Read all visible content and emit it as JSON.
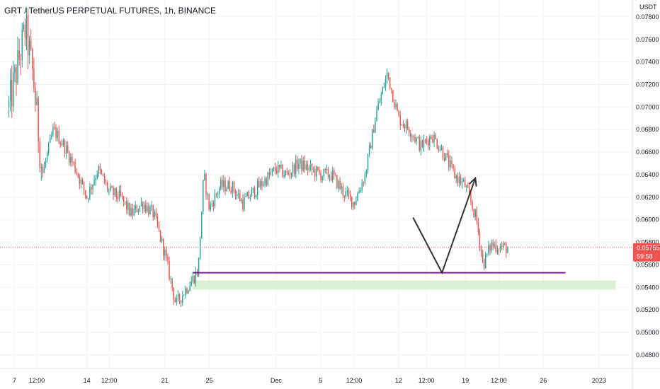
{
  "header": {
    "title": "GRT / TetherUS PERPETUAL FUTURES, 1h, BINANCE",
    "currency": "USDT"
  },
  "price_tag": {
    "price": "0.05755",
    "countdown": "59:58"
  },
  "colors": {
    "up": "#26a69a",
    "down": "#ef5350",
    "support_line": "#7b1fa2",
    "zone_fill": "#d9f0d3",
    "arrow": "#333333",
    "last_line": "#ef5350",
    "tag_bg": "#ef5350"
  },
  "chart_data": {
    "type": "candlestick",
    "title": "GRT / TetherUS PERPETUAL FUTURES, 1h, BINANCE",
    "y_axis": {
      "position": "right",
      "unit_label": "USDT",
      "ticks": [
        "0.07800",
        "0.07600",
        "0.07400",
        "0.07200",
        "0.07000",
        "0.06800",
        "0.06600",
        "0.06400",
        "0.06200",
        "0.06000",
        "0.05800",
        "0.05600",
        "0.05400",
        "0.05200",
        "0.05000",
        "0.04800"
      ],
      "tick_values": [
        0.078,
        0.076,
        0.074,
        0.072,
        0.07,
        0.068,
        0.066,
        0.064,
        0.062,
        0.06,
        0.058,
        0.056,
        0.054,
        0.052,
        0.05,
        0.048
      ],
      "range": [
        0.0468,
        0.0795
      ]
    },
    "x_axis": {
      "ticks": [
        "7",
        "12:00",
        "14",
        "12:00",
        "21",
        "25",
        "Dec",
        "5",
        "12:00",
        "12",
        "12:00",
        "19",
        "12:00",
        "26",
        "2023"
      ],
      "tick_positions": [
        0.5,
        2.5,
        7,
        9,
        14,
        18,
        24,
        28,
        31,
        35,
        37.5,
        41,
        44,
        48,
        53
      ]
    },
    "grid": true,
    "price_path": [
      [
        0,
        0.07
      ],
      [
        1.5,
        0.077
      ],
      [
        2.2,
        0.0725
      ],
      [
        3,
        0.064
      ],
      [
        4,
        0.068
      ],
      [
        5,
        0.0665
      ],
      [
        6,
        0.0645
      ],
      [
        7,
        0.062
      ],
      [
        8,
        0.0645
      ],
      [
        9,
        0.0625
      ],
      [
        10,
        0.062
      ],
      [
        11,
        0.0605
      ],
      [
        12,
        0.0615
      ],
      [
        13,
        0.0605
      ],
      [
        14,
        0.057
      ],
      [
        15,
        0.0525
      ],
      [
        16,
        0.054
      ],
      [
        17,
        0.0555
      ],
      [
        17.5,
        0.064
      ],
      [
        18,
        0.061
      ],
      [
        19,
        0.063
      ],
      [
        20,
        0.063
      ],
      [
        21,
        0.0615
      ],
      [
        22,
        0.0625
      ],
      [
        23,
        0.0635
      ],
      [
        24,
        0.0645
      ],
      [
        25,
        0.064
      ],
      [
        26,
        0.065
      ],
      [
        27,
        0.0645
      ],
      [
        28,
        0.064
      ],
      [
        29,
        0.064
      ],
      [
        30,
        0.0625
      ],
      [
        31,
        0.0615
      ],
      [
        32,
        0.064
      ],
      [
        33,
        0.0695
      ],
      [
        34,
        0.073
      ],
      [
        35,
        0.069
      ],
      [
        36,
        0.068
      ],
      [
        37,
        0.0665
      ],
      [
        38,
        0.0675
      ],
      [
        39,
        0.066
      ],
      [
        40,
        0.064
      ],
      [
        41,
        0.063
      ],
      [
        42,
        0.06
      ],
      [
        42.6,
        0.056
      ],
      [
        43.3,
        0.0578
      ],
      [
        44,
        0.0576
      ],
      [
        44.8,
        0.0575
      ]
    ],
    "last_price": 0.05755,
    "annotations": [
      {
        "type": "horizontal-line",
        "price": 0.0553,
        "x_from": 16.5,
        "x_to": 50,
        "color": "#7b1fa2"
      },
      {
        "type": "zone",
        "price_top": 0.0546,
        "price_bottom": 0.0538,
        "x_from": 16.5,
        "x_to": 54.5,
        "color": "#d9f0d3"
      },
      {
        "type": "arrow-path",
        "points": [
          [
            36.3,
            0.0602
          ],
          [
            38.9,
            0.0553
          ],
          [
            41.9,
            0.0637
          ]
        ],
        "color": "#333333"
      }
    ]
  }
}
